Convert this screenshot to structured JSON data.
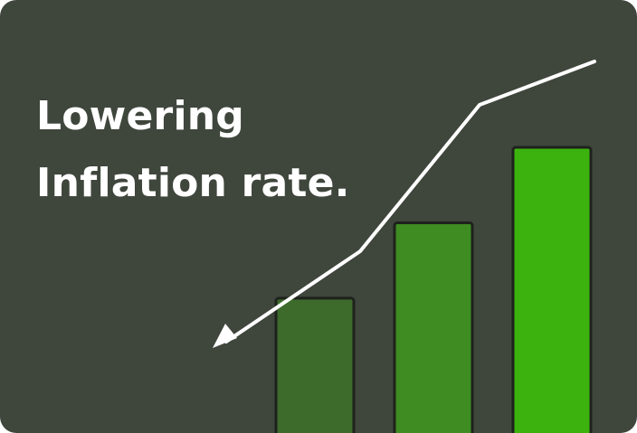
{
  "card": {
    "background_color": "#3f463c"
  },
  "headline": {
    "line1": "Lowering",
    "line2": "Inflation rate."
  },
  "graphic": {
    "bars": [
      {
        "level": 0.48,
        "color": "#3d6b2b"
      },
      {
        "level": 0.74,
        "color": "#3e8c22"
      },
      {
        "level": 1.0,
        "color": "#3cb20f"
      }
    ],
    "trend_line": {
      "color": "#ffffff",
      "direction": "downward",
      "arrow_icon": "arrow-head-icon"
    },
    "bar_outline_color": "#1e221c"
  }
}
